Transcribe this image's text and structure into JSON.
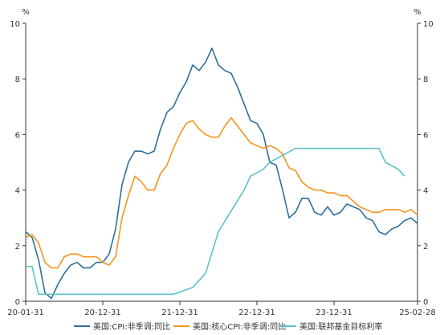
{
  "chart_data": {
    "type": "line",
    "title": "",
    "xlabel": "",
    "ylabel_left": "%",
    "ylabel_right": "%",
    "ylim": [
      0,
      10
    ],
    "y_ticks": [
      "0",
      "2",
      "4",
      "6",
      "8",
      "10"
    ],
    "x_ticks": [
      "20-01-31",
      "20-12-31",
      "21-12-31",
      "22-12-31",
      "23-12-31",
      "25-02-28"
    ],
    "grid": false,
    "legend_position": "bottom",
    "series": [
      {
        "name": "美国:CPI:非季调:同比",
        "color": "#2b7199",
        "points": [
          [
            "2020-01",
            2.5
          ],
          [
            "2020-02",
            2.3
          ],
          [
            "2020-03",
            1.5
          ],
          [
            "2020-04",
            0.3
          ],
          [
            "2020-05",
            0.1
          ],
          [
            "2020-06",
            0.6
          ],
          [
            "2020-07",
            1.0
          ],
          [
            "2020-08",
            1.3
          ],
          [
            "2020-09",
            1.4
          ],
          [
            "2020-10",
            1.2
          ],
          [
            "2020-11",
            1.2
          ],
          [
            "2020-12",
            1.4
          ],
          [
            "2021-01",
            1.4
          ],
          [
            "2021-02",
            1.7
          ],
          [
            "2021-03",
            2.6
          ],
          [
            "2021-04",
            4.2
          ],
          [
            "2021-05",
            5.0
          ],
          [
            "2021-06",
            5.4
          ],
          [
            "2021-07",
            5.4
          ],
          [
            "2021-08",
            5.3
          ],
          [
            "2021-09",
            5.4
          ],
          [
            "2021-10",
            6.2
          ],
          [
            "2021-11",
            6.8
          ],
          [
            "2021-12",
            7.0
          ],
          [
            "2022-01",
            7.5
          ],
          [
            "2022-02",
            7.9
          ],
          [
            "2022-03",
            8.5
          ],
          [
            "2022-04",
            8.3
          ],
          [
            "2022-05",
            8.6
          ],
          [
            "2022-06",
            9.1
          ],
          [
            "2022-07",
            8.5
          ],
          [
            "2022-08",
            8.3
          ],
          [
            "2022-09",
            8.2
          ],
          [
            "2022-10",
            7.7
          ],
          [
            "2022-11",
            7.1
          ],
          [
            "2022-12",
            6.5
          ],
          [
            "2023-01",
            6.4
          ],
          [
            "2023-02",
            6.0
          ],
          [
            "2023-03",
            5.0
          ],
          [
            "2023-04",
            4.9
          ],
          [
            "2023-05",
            4.0
          ],
          [
            "2023-06",
            3.0
          ],
          [
            "2023-07",
            3.2
          ],
          [
            "2023-08",
            3.7
          ],
          [
            "2023-09",
            3.7
          ],
          [
            "2023-10",
            3.2
          ],
          [
            "2023-11",
            3.1
          ],
          [
            "2023-12",
            3.4
          ],
          [
            "2024-01",
            3.1
          ],
          [
            "2024-02",
            3.2
          ],
          [
            "2024-03",
            3.5
          ],
          [
            "2024-04",
            3.4
          ],
          [
            "2024-05",
            3.3
          ],
          [
            "2024-06",
            3.0
          ],
          [
            "2024-07",
            2.9
          ],
          [
            "2024-08",
            2.5
          ],
          [
            "2024-09",
            2.4
          ],
          [
            "2024-10",
            2.6
          ],
          [
            "2024-11",
            2.7
          ],
          [
            "2024-12",
            2.9
          ],
          [
            "2025-01",
            3.0
          ],
          [
            "2025-02",
            2.8
          ]
        ]
      },
      {
        "name": "美国:核心CPI:非季调:同比",
        "color": "#f7941d",
        "points": [
          [
            "2020-01",
            2.3
          ],
          [
            "2020-02",
            2.4
          ],
          [
            "2020-03",
            2.1
          ],
          [
            "2020-04",
            1.4
          ],
          [
            "2020-05",
            1.2
          ],
          [
            "2020-06",
            1.2
          ],
          [
            "2020-07",
            1.6
          ],
          [
            "2020-08",
            1.7
          ],
          [
            "2020-09",
            1.7
          ],
          [
            "2020-10",
            1.6
          ],
          [
            "2020-11",
            1.6
          ],
          [
            "2020-12",
            1.6
          ],
          [
            "2021-01",
            1.4
          ],
          [
            "2021-02",
            1.3
          ],
          [
            "2021-03",
            1.6
          ],
          [
            "2021-04",
            3.0
          ],
          [
            "2021-05",
            3.8
          ],
          [
            "2021-06",
            4.5
          ],
          [
            "2021-07",
            4.3
          ],
          [
            "2021-08",
            4.0
          ],
          [
            "2021-09",
            4.0
          ],
          [
            "2021-10",
            4.6
          ],
          [
            "2021-11",
            4.9
          ],
          [
            "2021-12",
            5.5
          ],
          [
            "2022-01",
            6.0
          ],
          [
            "2022-02",
            6.4
          ],
          [
            "2022-03",
            6.5
          ],
          [
            "2022-04",
            6.2
          ],
          [
            "2022-05",
            6.0
          ],
          [
            "2022-06",
            5.9
          ],
          [
            "2022-07",
            5.9
          ],
          [
            "2022-08",
            6.3
          ],
          [
            "2022-09",
            6.6
          ],
          [
            "2022-10",
            6.3
          ],
          [
            "2022-11",
            6.0
          ],
          [
            "2022-12",
            5.7
          ],
          [
            "2023-01",
            5.6
          ],
          [
            "2023-02",
            5.5
          ],
          [
            "2023-03",
            5.6
          ],
          [
            "2023-04",
            5.5
          ],
          [
            "2023-05",
            5.3
          ],
          [
            "2023-06",
            4.8
          ],
          [
            "2023-07",
            4.7
          ],
          [
            "2023-08",
            4.3
          ],
          [
            "2023-09",
            4.1
          ],
          [
            "2023-10",
            4.0
          ],
          [
            "2023-11",
            4.0
          ],
          [
            "2023-12",
            3.9
          ],
          [
            "2024-01",
            3.9
          ],
          [
            "2024-02",
            3.8
          ],
          [
            "2024-03",
            3.8
          ],
          [
            "2024-04",
            3.6
          ],
          [
            "2024-05",
            3.4
          ],
          [
            "2024-06",
            3.3
          ],
          [
            "2024-07",
            3.2
          ],
          [
            "2024-08",
            3.2
          ],
          [
            "2024-09",
            3.3
          ],
          [
            "2024-10",
            3.3
          ],
          [
            "2024-11",
            3.3
          ],
          [
            "2024-12",
            3.2
          ],
          [
            "2025-01",
            3.3
          ],
          [
            "2025-02",
            3.1
          ]
        ]
      },
      {
        "name": "美国:联邦基金目标利率",
        "color": "#5bc2c9",
        "points": [
          [
            "2020-01",
            1.25
          ],
          [
            "2020-02",
            1.25
          ],
          [
            "2020-03",
            0.25
          ],
          [
            "2020-12",
            0.25
          ],
          [
            "2021-12",
            0.25
          ],
          [
            "2022-03",
            0.5
          ],
          [
            "2022-05",
            1.0
          ],
          [
            "2022-06",
            1.75
          ],
          [
            "2022-07",
            2.5
          ],
          [
            "2022-09",
            3.25
          ],
          [
            "2022-11",
            4.0
          ],
          [
            "2022-12",
            4.5
          ],
          [
            "2023-02",
            4.75
          ],
          [
            "2023-03",
            5.0
          ],
          [
            "2023-05",
            5.25
          ],
          [
            "2023-07",
            5.5
          ],
          [
            "2024-08",
            5.5
          ],
          [
            "2024-09",
            5.0
          ],
          [
            "2024-11",
            4.75
          ],
          [
            "2024-12",
            4.5
          ]
        ]
      }
    ]
  }
}
